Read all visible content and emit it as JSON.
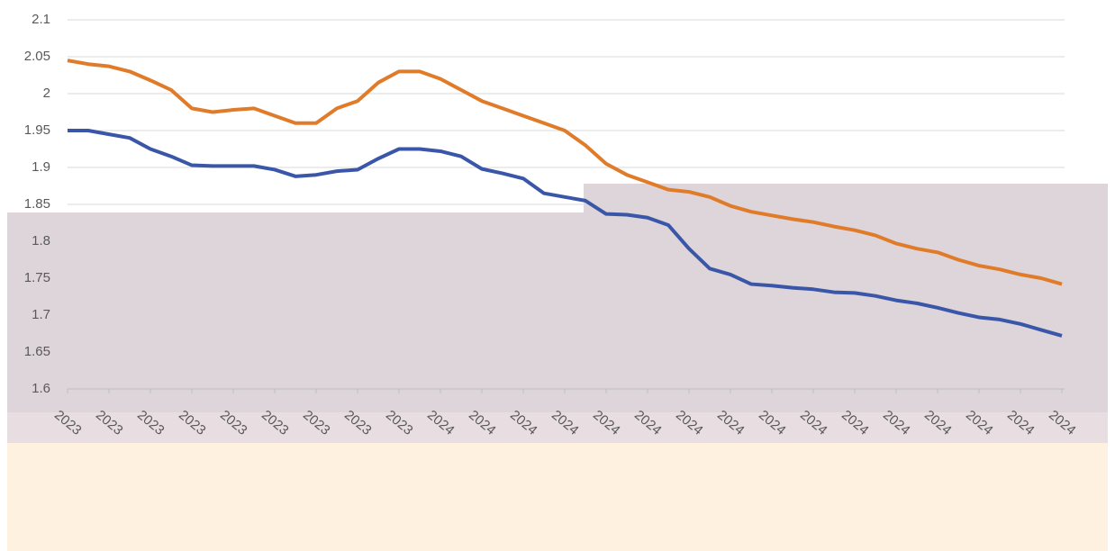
{
  "chart_data": {
    "type": "line",
    "categories": [
      "2023",
      null,
      "2023",
      null,
      "2023",
      null,
      "2023",
      null,
      "2023",
      null,
      "2023",
      null,
      "2023",
      null,
      "2023",
      null,
      "2023",
      null,
      "2024",
      null,
      "2024",
      null,
      "2024",
      null,
      "2024",
      null,
      "2024",
      null,
      "2024",
      null,
      "2024",
      null,
      "2024",
      null,
      "2024",
      null,
      "2024",
      null,
      "2024",
      null,
      "2024",
      null,
      "2024",
      null,
      "2024",
      null,
      "2024",
      null,
      "2024"
    ],
    "series": [
      {
        "color": "#e07b2a",
        "values": [
          2.045,
          2.04,
          2.037,
          2.03,
          2.018,
          2.005,
          1.98,
          1.975,
          1.978,
          1.98,
          1.97,
          1.96,
          1.96,
          1.98,
          1.99,
          2.015,
          2.03,
          2.03,
          2.02,
          2.005,
          1.99,
          1.98,
          1.97,
          1.96,
          1.95,
          1.93,
          1.905,
          1.89,
          1.88,
          1.87,
          1.867,
          1.86,
          1.848,
          1.84,
          1.835,
          1.83,
          1.826,
          1.82,
          1.815,
          1.808,
          1.797,
          1.79,
          1.785,
          1.775,
          1.767,
          1.762,
          1.755,
          1.75,
          1.742
        ]
      },
      {
        "color": "#3a56a8",
        "values": [
          1.95,
          1.95,
          1.945,
          1.94,
          1.925,
          1.915,
          1.903,
          1.902,
          1.902,
          1.902,
          1.897,
          1.888,
          1.89,
          1.895,
          1.897,
          1.912,
          1.925,
          1.925,
          1.922,
          1.915,
          1.898,
          1.892,
          1.885,
          1.865,
          1.86,
          1.855,
          1.837,
          1.836,
          1.832,
          1.822,
          1.79,
          1.763,
          1.755,
          1.742,
          1.74,
          1.737,
          1.735,
          1.731,
          1.73,
          1.726,
          1.72,
          1.716,
          1.71,
          1.703,
          1.697,
          1.694,
          1.688,
          1.68,
          1.672
        ]
      }
    ],
    "ylim": [
      1.6,
      2.1
    ],
    "yticks": [
      1.6,
      1.65,
      1.7,
      1.75,
      1.8,
      1.85,
      1.9,
      1.95,
      2,
      2.05,
      2.1
    ],
    "grid": true
  }
}
